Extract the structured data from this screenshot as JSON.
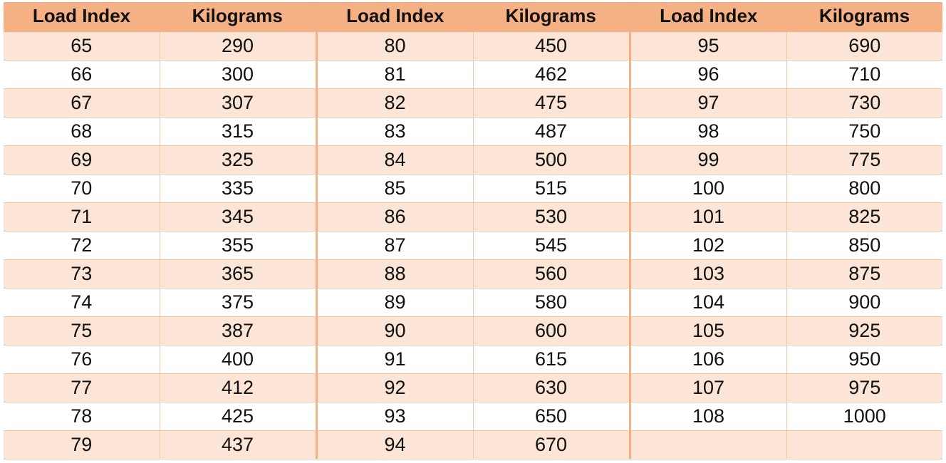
{
  "header": {
    "load_index": "Load Index",
    "kilograms": "Kilograms"
  },
  "rows": [
    [
      "65",
      "290",
      "80",
      "450",
      "95",
      "690"
    ],
    [
      "66",
      "300",
      "81",
      "462",
      "96",
      "710"
    ],
    [
      "67",
      "307",
      "82",
      "475",
      "97",
      "730"
    ],
    [
      "68",
      "315",
      "83",
      "487",
      "98",
      "750"
    ],
    [
      "69",
      "325",
      "84",
      "500",
      "99",
      "775"
    ],
    [
      "70",
      "335",
      "85",
      "515",
      "100",
      "800"
    ],
    [
      "71",
      "345",
      "86",
      "530",
      "101",
      "825"
    ],
    [
      "72",
      "355",
      "87",
      "545",
      "102",
      "850"
    ],
    [
      "73",
      "365",
      "88",
      "560",
      "103",
      "875"
    ],
    [
      "74",
      "375",
      "89",
      "580",
      "104",
      "900"
    ],
    [
      "75",
      "387",
      "90",
      "600",
      "105",
      "925"
    ],
    [
      "76",
      "400",
      "91",
      "615",
      "106",
      "950"
    ],
    [
      "77",
      "412",
      "92",
      "630",
      "107",
      "975"
    ],
    [
      "78",
      "425",
      "93",
      "650",
      "108",
      "1000"
    ],
    [
      "79",
      "437",
      "94",
      "670",
      "",
      ""
    ]
  ],
  "colors": {
    "header_bg": "#f5b183",
    "band_bg": "#fce4d6",
    "divider": "#f4b183"
  }
}
